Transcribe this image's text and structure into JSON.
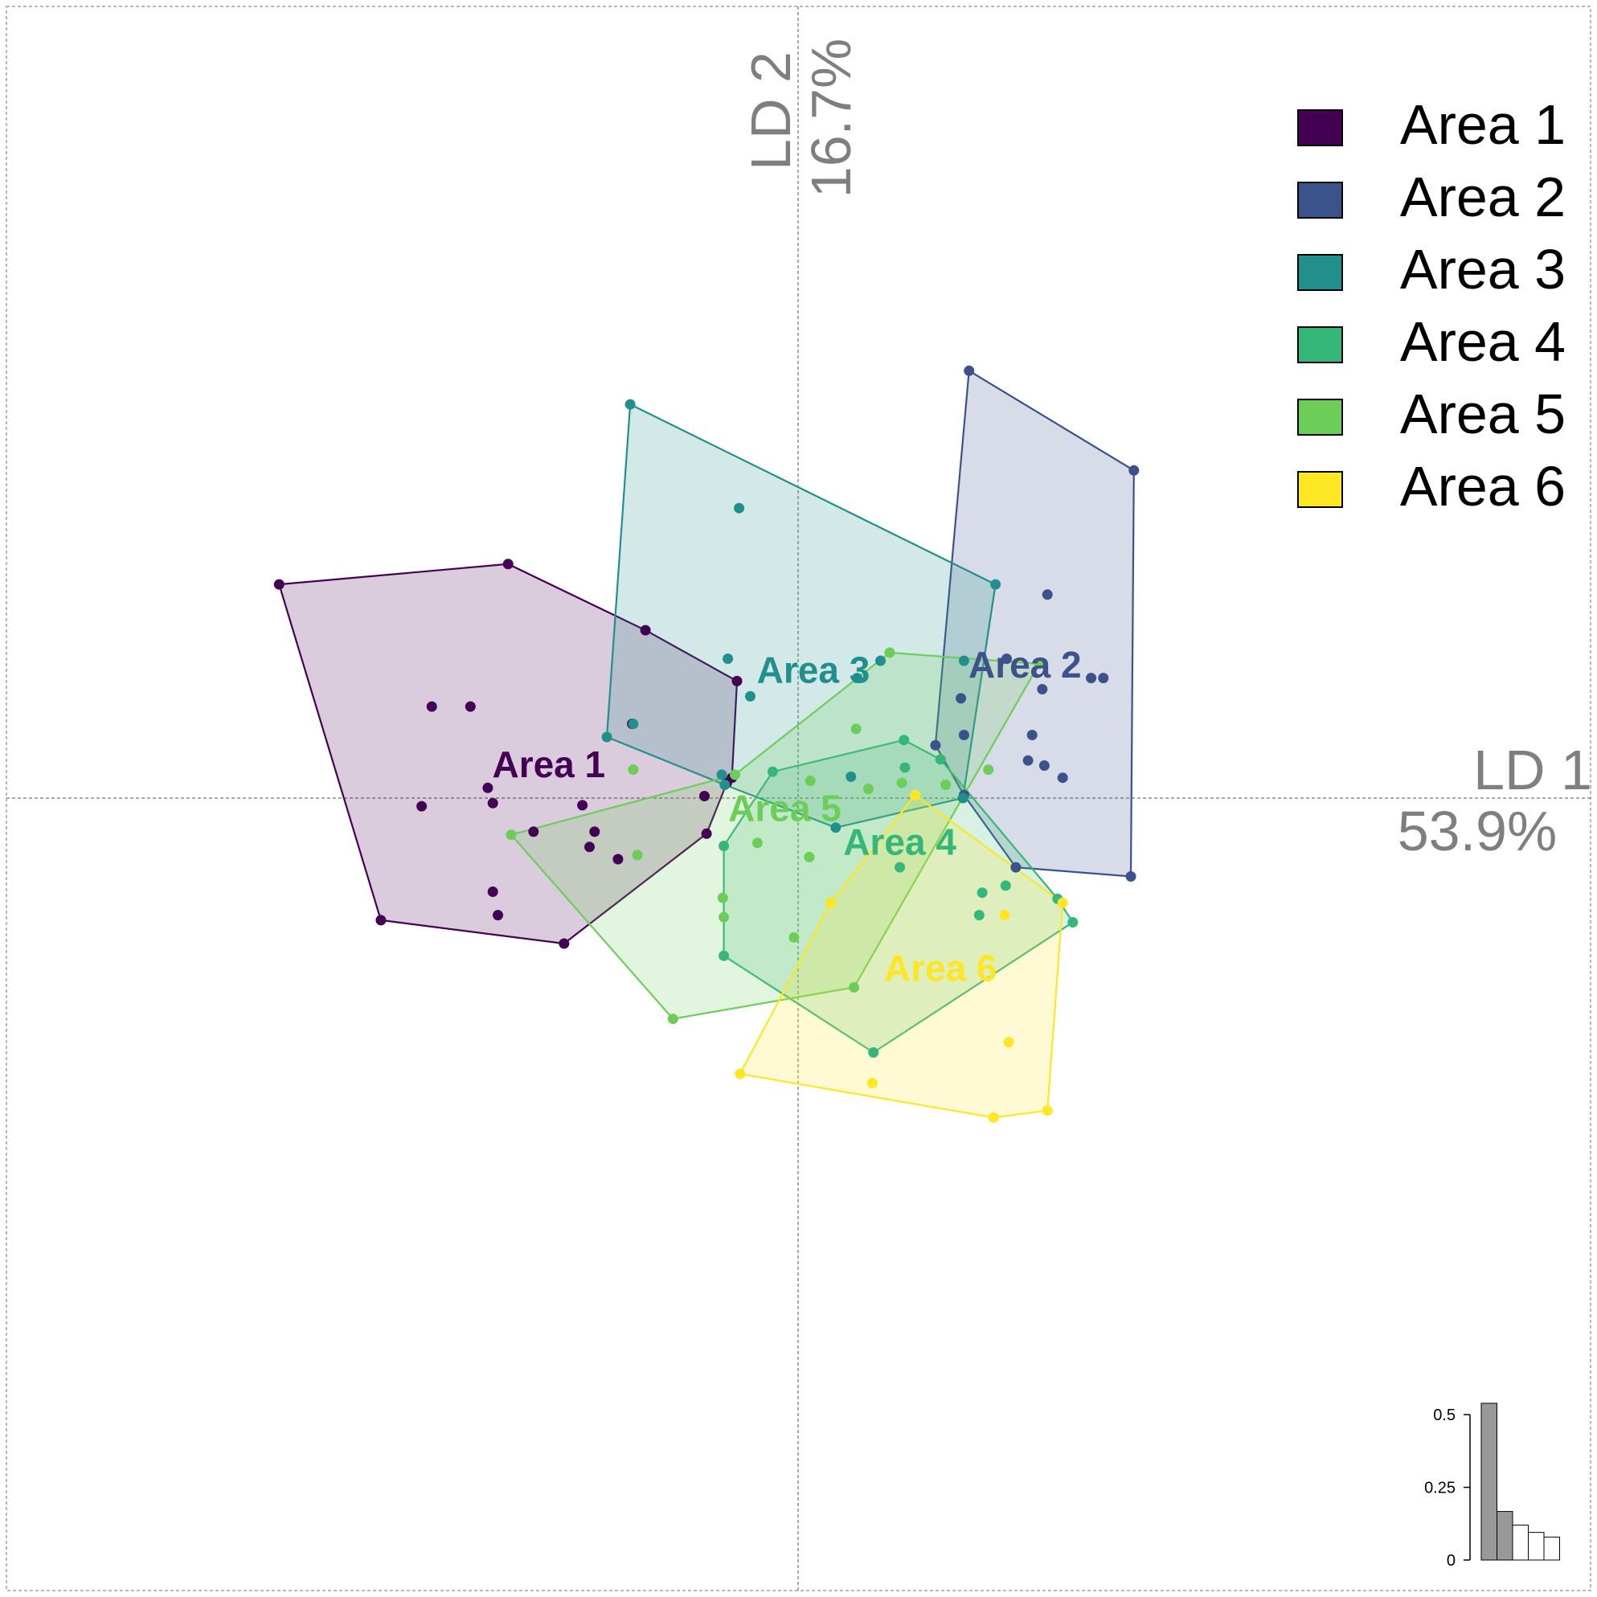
{
  "chart_data": {
    "type": "scatter",
    "x_axis": {
      "name": "LD 1",
      "value": "53.9%"
    },
    "y_axis": {
      "name": "LD 2",
      "value": "16.7%"
    },
    "xlim": [
      -6.2,
      6.2
    ],
    "ylim": [
      -6.2,
      6.2
    ],
    "grid": false,
    "legend_position": "top-right",
    "series": [
      {
        "name": "Area 1",
        "color": "#440154",
        "label_pos": [
          -2.45,
          0.3
        ],
        "points": [
          [
            -5.1,
            2.1
          ],
          [
            -2.85,
            2.3
          ],
          [
            -1.5,
            1.65
          ],
          [
            -0.6,
            1.15
          ],
          [
            -0.65,
            0.2
          ],
          [
            -0.7,
            0.15
          ],
          [
            -0.9,
            -0.35
          ],
          [
            -2.3,
            -1.43
          ],
          [
            -4.1,
            -1.2
          ],
          [
            -3.6,
            0.9
          ],
          [
            -3.22,
            0.9
          ],
          [
            -3.05,
            0.1
          ],
          [
            -3.0,
            -0.05
          ],
          [
            -3.7,
            -0.08
          ],
          [
            -2.12,
            -0.07
          ],
          [
            -2.0,
            -0.33
          ],
          [
            -2.05,
            -0.48
          ],
          [
            -1.77,
            -0.6
          ],
          [
            -0.92,
            0.02
          ],
          [
            -1.63,
            0.73
          ],
          [
            -3.0,
            -0.92
          ],
          [
            -2.95,
            -1.15
          ],
          [
            -2.6,
            -0.33
          ]
        ],
        "hull": [
          [
            -5.1,
            2.1
          ],
          [
            -2.85,
            2.3
          ],
          [
            -1.5,
            1.65
          ],
          [
            -0.6,
            1.15
          ],
          [
            -0.65,
            0.2
          ],
          [
            -0.7,
            0.15
          ],
          [
            -0.9,
            -0.35
          ],
          [
            -2.3,
            -1.43
          ],
          [
            -4.1,
            -1.2
          ]
        ]
      },
      {
        "name": "Area 2",
        "color": "#3b528b",
        "label_pos": [
          2.23,
          1.28
        ],
        "points": [
          [
            1.68,
            4.2
          ],
          [
            3.3,
            3.22
          ],
          [
            3.27,
            -0.77
          ],
          [
            2.14,
            -0.68
          ],
          [
            1.63,
            0.03
          ],
          [
            1.35,
            0.52
          ],
          [
            2.45,
            2.0
          ],
          [
            2.88,
            1.18
          ],
          [
            2.3,
            0.62
          ],
          [
            3.0,
            1.18
          ],
          [
            2.05,
            1.37
          ],
          [
            2.26,
            0.37
          ],
          [
            2.42,
            0.32
          ],
          [
            2.4,
            1.07
          ],
          [
            2.6,
            0.2
          ],
          [
            1.6,
            0.98
          ],
          [
            1.63,
            0.62
          ]
        ],
        "hull": [
          [
            1.68,
            4.2
          ],
          [
            3.3,
            3.22
          ],
          [
            3.27,
            -0.77
          ],
          [
            2.14,
            -0.68
          ],
          [
            1.63,
            0.03
          ],
          [
            1.35,
            0.52
          ]
        ]
      },
      {
        "name": "Area 3",
        "color": "#21908d",
        "label_pos": [
          0.15,
          1.23
        ],
        "points": [
          [
            -1.65,
            3.87
          ],
          [
            1.94,
            2.1
          ],
          [
            1.62,
            0.0
          ],
          [
            0.37,
            -0.29
          ],
          [
            -0.72,
            0.13
          ],
          [
            -1.88,
            0.6
          ],
          [
            -0.58,
            2.85
          ],
          [
            -1.62,
            0.73
          ],
          [
            -0.47,
            1.0
          ],
          [
            -0.69,
            1.37
          ],
          [
            -0.75,
            0.23
          ],
          [
            0.58,
            1.18
          ],
          [
            0.81,
            1.35
          ],
          [
            1.63,
            1.35
          ],
          [
            0.52,
            0.21
          ]
        ],
        "hull": [
          [
            -1.65,
            3.87
          ],
          [
            1.94,
            2.1
          ],
          [
            1.62,
            0.0
          ],
          [
            0.37,
            -0.29
          ],
          [
            -0.72,
            0.13
          ],
          [
            -1.88,
            0.6
          ]
        ]
      },
      {
        "name": "Area 4",
        "color": "#35b779",
        "label_pos": [
          1.0,
          -0.46
        ],
        "points": [
          [
            -0.73,
            -0.47
          ],
          [
            -0.73,
            -1.55
          ],
          [
            0.74,
            -2.5
          ],
          [
            2.7,
            -1.22
          ],
          [
            2.55,
            -0.99
          ],
          [
            1.4,
            0.38
          ],
          [
            1.04,
            0.57
          ],
          [
            -0.25,
            0.26
          ],
          [
            1.05,
            0.3
          ],
          [
            1.81,
            -0.93
          ],
          [
            1.78,
            -1.15
          ],
          [
            2.04,
            -0.86
          ],
          [
            1.0,
            -0.68
          ]
        ],
        "hull": [
          [
            -0.73,
            -0.47
          ],
          [
            -0.73,
            -1.55
          ],
          [
            0.74,
            -2.5
          ],
          [
            2.7,
            -1.22
          ],
          [
            2.55,
            -0.99
          ],
          [
            1.4,
            0.38
          ],
          [
            1.04,
            0.57
          ],
          [
            -0.25,
            0.26
          ]
        ]
      },
      {
        "name": "Area 5",
        "color": "#6cce59",
        "label_pos": [
          -0.13,
          -0.13
        ],
        "points": [
          [
            -2.82,
            -0.36
          ],
          [
            -1.23,
            -2.17
          ],
          [
            0.55,
            -1.86
          ],
          [
            2.37,
            1.32
          ],
          [
            0.9,
            1.43
          ],
          [
            -0.62,
            0.23
          ],
          [
            -1.62,
            0.28
          ],
          [
            -1.58,
            -0.56
          ],
          [
            -0.4,
            -0.44
          ],
          [
            -0.74,
            -0.98
          ],
          [
            -0.73,
            -1.17
          ],
          [
            -0.04,
            -1.37
          ],
          [
            0.11,
            -0.58
          ],
          [
            0.57,
            0.68
          ],
          [
            0.69,
            0.09
          ],
          [
            1.02,
            0.15
          ],
          [
            1.45,
            0.13
          ],
          [
            1.87,
            0.28
          ],
          [
            0.12,
            0.17
          ]
        ],
        "hull": [
          [
            -2.82,
            -0.36
          ],
          [
            -1.23,
            -2.17
          ],
          [
            0.55,
            -1.86
          ],
          [
            2.37,
            1.32
          ],
          [
            0.9,
            1.43
          ],
          [
            -0.62,
            0.23
          ]
        ]
      },
      {
        "name": "Area 6",
        "color": "#fde725",
        "label_pos": [
          1.4,
          -1.7
        ],
        "points": [
          [
            1.15,
            0.03
          ],
          [
            2.6,
            -1.03
          ],
          [
            2.45,
            -3.07
          ],
          [
            1.92,
            -3.14
          ],
          [
            -0.57,
            -2.71
          ],
          [
            0.32,
            -1.03
          ],
          [
            0.73,
            -2.8
          ],
          [
            2.07,
            -2.4
          ],
          [
            2.03,
            -1.15
          ]
        ],
        "hull": [
          [
            1.15,
            0.03
          ],
          [
            2.6,
            -1.03
          ],
          [
            2.45,
            -3.07
          ],
          [
            1.92,
            -3.14
          ],
          [
            -0.57,
            -2.71
          ],
          [
            0.32,
            -1.03
          ]
        ]
      }
    ]
  },
  "eigen_inset": {
    "ticks": [
      "0.5",
      "0.25",
      "0"
    ],
    "tick_values": [
      0.5,
      0.25,
      0
    ],
    "bars": [
      0.539,
      0.167,
      0.12,
      0.095,
      0.079
    ],
    "highlighted": 2,
    "ymax": 0.55
  }
}
